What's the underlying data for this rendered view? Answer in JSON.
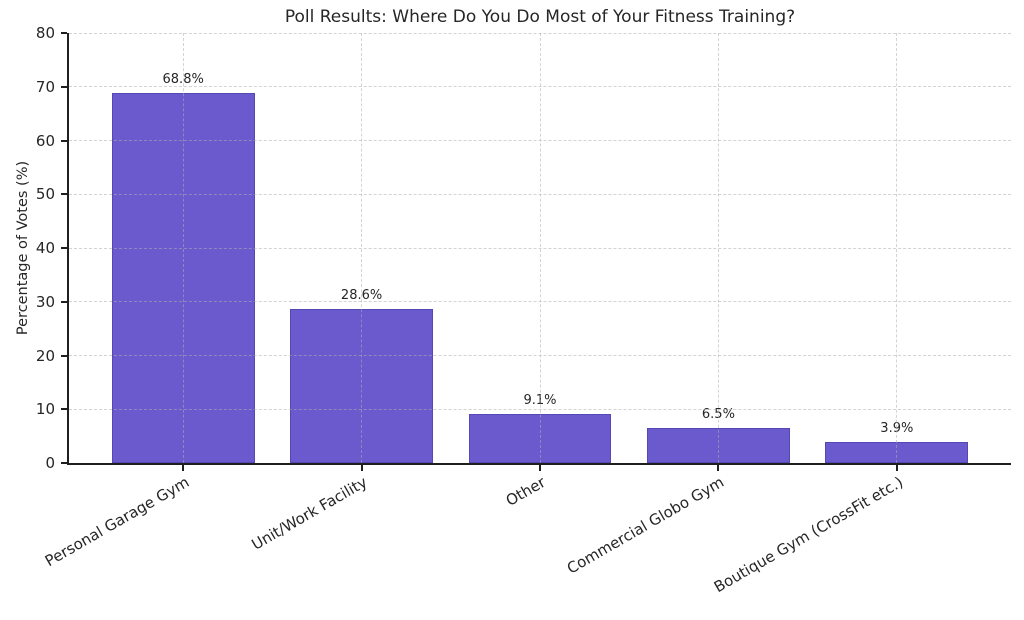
{
  "chart_data": {
    "type": "bar",
    "title": "Poll Results: Where Do You Do Most of Your Fitness Training?",
    "xlabel": "",
    "ylabel": "Percentage of Votes (%)",
    "categories": [
      "Personal Garage Gym",
      "Unit/Work Facility",
      "Other",
      "Commercial Globo Gym",
      "Boutique Gym (CrossFit etc.)"
    ],
    "values": [
      68.8,
      28.6,
      9.1,
      6.5,
      3.9
    ],
    "value_labels": [
      "68.8%",
      "28.6%",
      "9.1%",
      "6.5%",
      "3.9%"
    ],
    "ylim": [
      0,
      80
    ],
    "yticks": [
      0,
      10,
      20,
      30,
      40,
      50,
      60,
      70,
      80
    ],
    "grid": "dashed, horizontal and vertical, drawn over bars",
    "legend": "none",
    "bar_color": "#6a5acd",
    "bar_edge_color": "#5547b4",
    "grid_color": "#aeaeae",
    "spine_color": "#1f1f1f",
    "text_color": "#262626",
    "background_color": "#ffffff",
    "x_label_rotation_deg": 30
  }
}
